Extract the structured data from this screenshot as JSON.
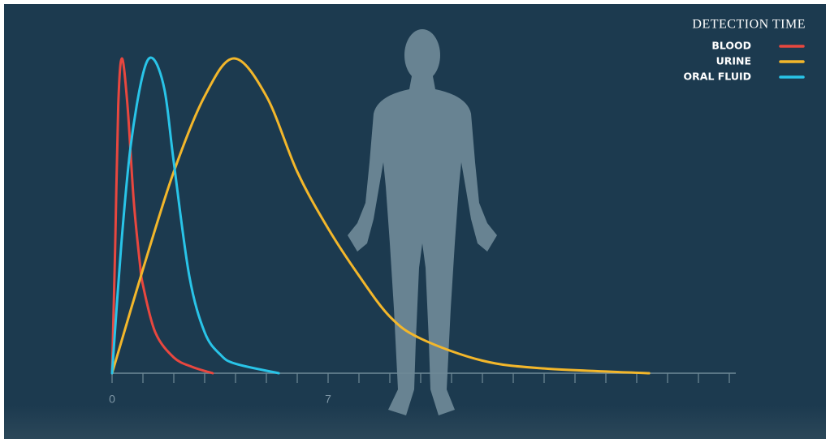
{
  "chart_data": {
    "type": "line",
    "legend_title": "DETECTION TIME",
    "legend_position": "upper right",
    "xlim": [
      0,
      20
    ],
    "ylim": [
      0,
      100
    ],
    "xticks": [
      0,
      7
    ],
    "minor_xticks": [
      0,
      1,
      2,
      3,
      4,
      5,
      6,
      7,
      8,
      9,
      10,
      11,
      12,
      13,
      14,
      15,
      16,
      17,
      18,
      19,
      20
    ],
    "series": [
      {
        "name": "BLOOD",
        "color": "#e8473f",
        "x": [
          0,
          0.1,
          0.2,
          0.32,
          0.5,
          0.7,
          0.9,
          1.0,
          1.4,
          2.0,
          2.6,
          3.26
        ],
        "values": [
          0,
          40,
          85,
          100,
          85,
          55,
          35,
          28,
          13,
          5,
          2,
          0
        ]
      },
      {
        "name": "URINE",
        "color": "#f3b72b",
        "x": [
          0,
          1,
          2,
          3,
          3.95,
          5,
          6,
          7,
          8,
          9,
          10,
          12,
          14,
          17.4
        ],
        "values": [
          0,
          33,
          64,
          88,
          100,
          88,
          64,
          46,
          31,
          18,
          11,
          4,
          1.5,
          0
        ]
      },
      {
        "name": "ORAL FLUID",
        "color": "#29c4e8",
        "x": [
          0,
          0.3,
          0.6,
          1.0,
          1.32,
          1.7,
          2.0,
          2.5,
          3.0,
          3.5,
          4.0,
          5.4
        ],
        "values": [
          0,
          41,
          72,
          95,
          100,
          90,
          67,
          31,
          13,
          6,
          3,
          0
        ]
      }
    ]
  }
}
